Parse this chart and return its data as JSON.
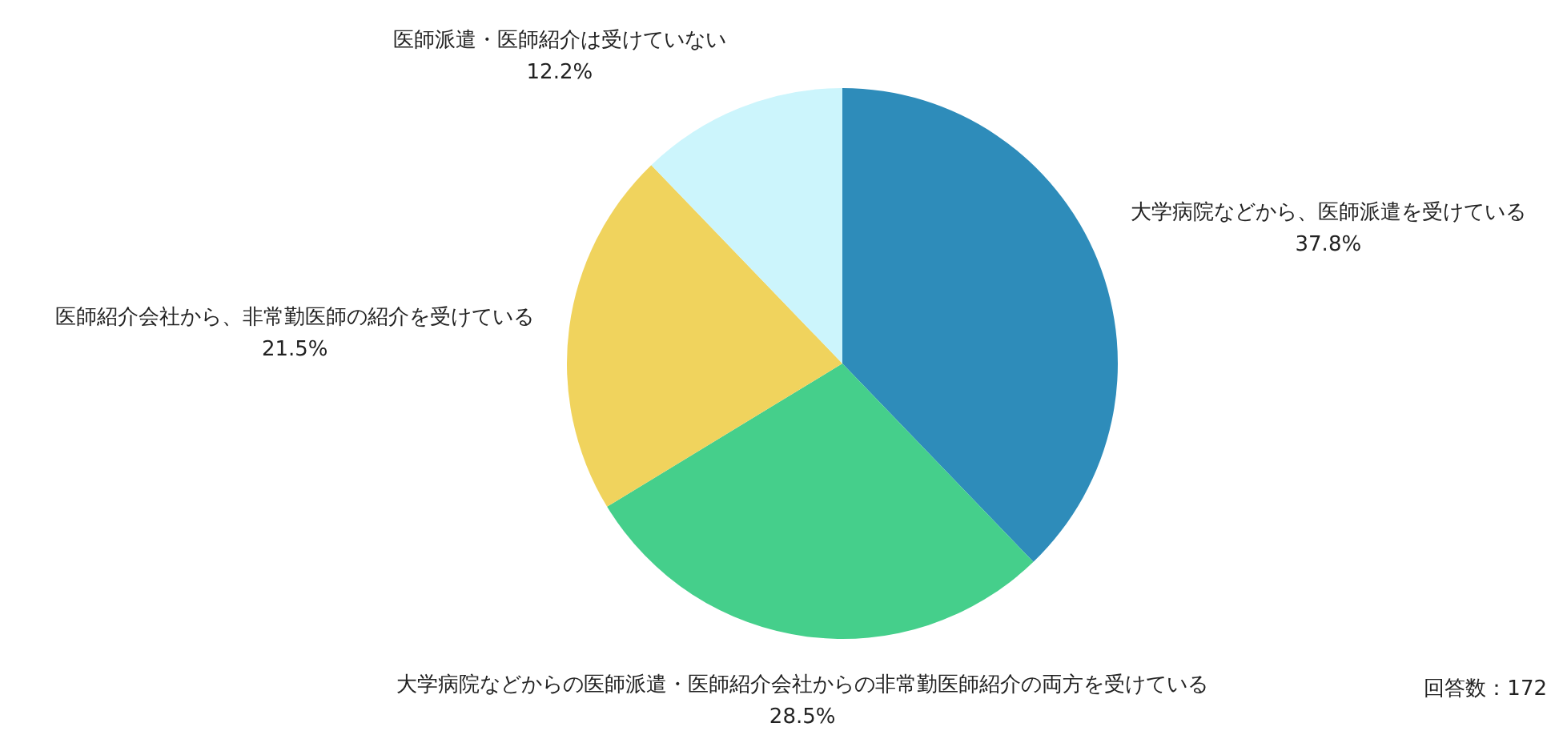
{
  "chart_data": {
    "type": "pie",
    "categories": [
      "大学病院などから、医師派遣を受けている",
      "大学病院などからの医師派遣・医師紹介会社からの非常勤医師紹介の両方を受けている",
      "医師紹介会社から、非常勤医師の紹介を受けている",
      "医師派遣・医師紹介は受けていない"
    ],
    "values": [
      37.8,
      28.5,
      21.5,
      12.2
    ],
    "value_labels": [
      "37.8%",
      "28.5%",
      "21.5%",
      "12.2%"
    ],
    "colors": [
      "#2e8cba",
      "#45cf8b",
      "#f0d35d",
      "#ccf5fc"
    ],
    "annotations": [
      "回答数：172"
    ],
    "legend": false
  }
}
